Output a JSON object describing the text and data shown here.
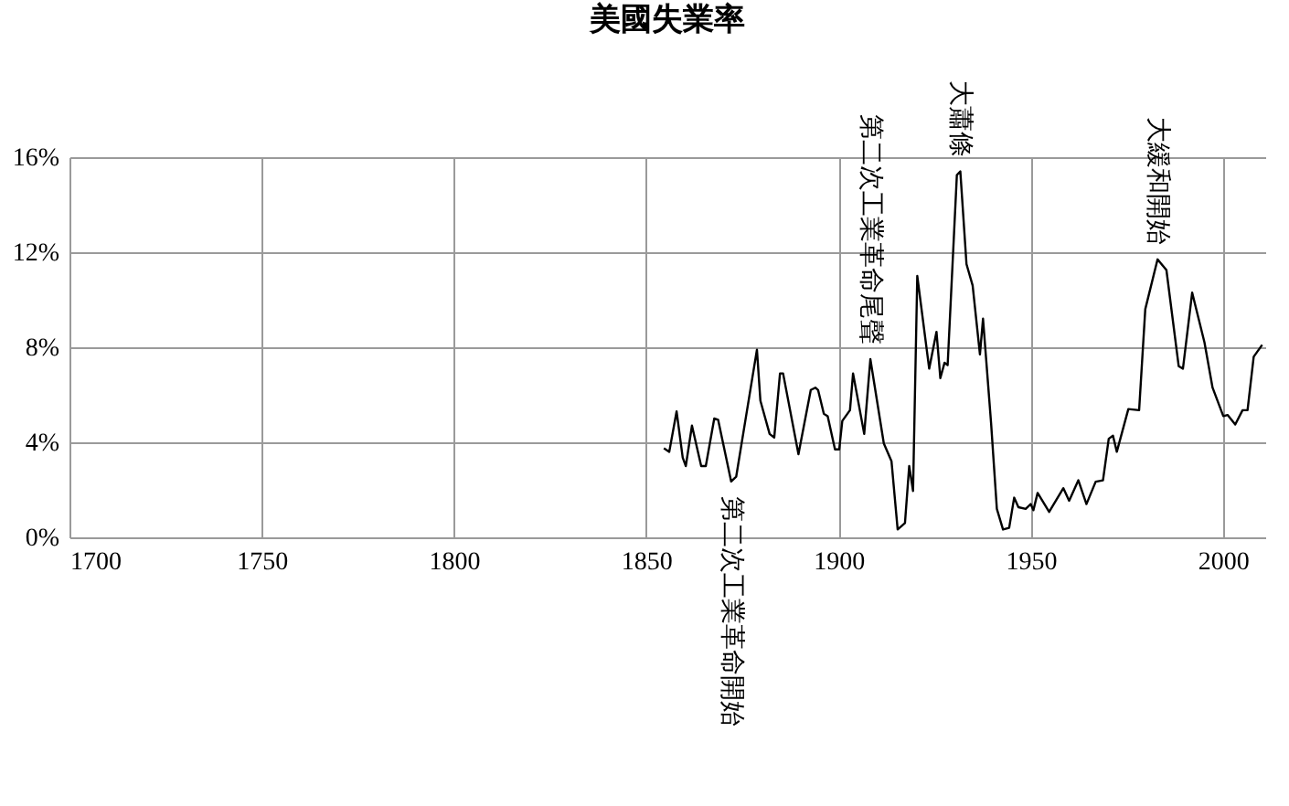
{
  "chart_data": {
    "type": "line",
    "title": "美國失業率",
    "x": [
      1854.6,
      1856,
      1857.9,
      1859.5,
      1860.3,
      1861.9,
      1864.3,
      1865.5,
      1867.7,
      1868.7,
      1872.1,
      1873.4,
      1878.8,
      1879.7,
      1882.1,
      1883.3,
      1884.8,
      1885.6,
      1889.6,
      1892.8,
      1894,
      1894.7,
      1896.2,
      1897.2,
      1899.1,
      1900.2,
      1901,
      1903,
      1903.8,
      1906.7,
      1908.3,
      1911.8,
      1913.8,
      1915.4,
      1917.3,
      1918.4,
      1919.4,
      1920.5,
      1923.6,
      1925.5,
      1926.5,
      1927.6,
      1928.4,
      1930.8,
      1931.7,
      1933.3,
      1934.9,
      1936.8,
      1937.6,
      1939.7,
      1941.2,
      1942.8,
      1944.4,
      1945.7,
      1946.8,
      1948.7,
      1950,
      1950.7,
      1951.8,
      1954.8,
      1958.5,
      1960,
      1962.4,
      1964.5,
      1966.9,
      1968.8,
      1970.3,
      1971.4,
      1972.4,
      1975.4,
      1978.2,
      1979.8,
      1983,
      1985.3,
      1988.5,
      1989.6,
      1992,
      1995.2,
      1997.3,
      2000.1,
      2001.2,
      2003.2,
      2005.1,
      2006.4,
      2008,
      2010.2
    ],
    "series": [
      {
        "color": "#000000",
        "values": [
          3.75,
          3.6,
          5.3,
          3.35,
          3.0,
          4.7,
          3.0,
          3.0,
          5.0,
          4.95,
          2.35,
          2.55,
          7.9,
          5.75,
          4.35,
          4.2,
          6.9,
          6.9,
          3.5,
          6.2,
          6.3,
          6.2,
          5.2,
          5.1,
          3.7,
          3.7,
          4.9,
          5.35,
          6.9,
          4.35,
          7.5,
          3.95,
          3.2,
          0.33,
          0.6,
          3.0,
          1.95,
          11.0,
          7.1,
          8.65,
          6.7,
          7.35,
          7.25,
          15.25,
          15.4,
          11.5,
          10.6,
          7.7,
          9.2,
          4.8,
          1.2,
          0.33,
          0.4,
          1.67,
          1.27,
          1.2,
          1.4,
          1.14,
          1.87,
          1.07,
          2.07,
          1.54,
          2.4,
          1.4,
          2.34,
          2.4,
          4.15,
          4.28,
          3.6,
          5.4,
          5.35,
          9.6,
          11.7,
          11.25,
          7.2,
          7.1,
          10.3,
          8.2,
          6.3,
          5.1,
          5.15,
          4.75,
          5.35,
          5.35,
          7.6,
          8.1
        ]
      }
    ],
    "xlim": [
      1700,
      2011
    ],
    "xticks": [
      1700,
      1750,
      1800,
      1850,
      1900,
      1950,
      2000
    ],
    "ylim": [
      0,
      16
    ],
    "yticks": [
      {
        "value": 0,
        "label": "0%"
      },
      {
        "value": 4,
        "label": "4%"
      },
      {
        "value": 8,
        "label": "8%"
      },
      {
        "value": 12,
        "label": "12%"
      },
      {
        "value": 16,
        "label": "16%"
      }
    ],
    "grid": true,
    "marker": "none",
    "line_style": "solid",
    "annotations": [
      {
        "text": "第二次工業革命開始",
        "x": 1872.1,
        "y": 2.35
      },
      {
        "text": "第二次工業革命尾聲",
        "x": 1908.3,
        "y": 7.5
      },
      {
        "text": "大蕭條",
        "x": 1931.7,
        "y": 15.4
      },
      {
        "text": "大緩和開始",
        "x": 1983,
        "y": 11.7
      }
    ]
  }
}
